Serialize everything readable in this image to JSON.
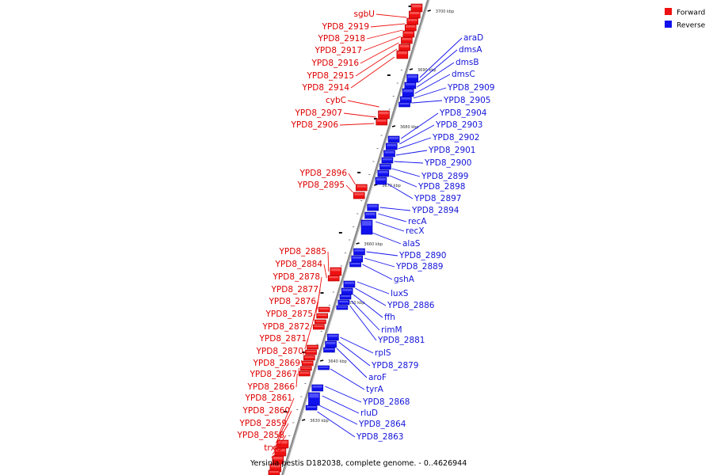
{
  "caption": "Yersinia pestis D182038, complete genome. - 0..4626944",
  "legend": [
    {
      "label": "Forward",
      "color": "#ee1111"
    },
    {
      "label": "Reverse",
      "color": "#1111ee"
    }
  ],
  "colors": {
    "forward": "#ee1111",
    "reverse": "#1111ee",
    "forward_text": "#dd0000",
    "reverse_text": "#1414d8",
    "backbone": "#888888"
  },
  "scale_ticks": [
    "3700 kbp",
    "3690 kbp",
    "3680 kbp",
    "3670 kbp",
    "3660 kbp",
    "3650 kbp",
    "3640 kbp",
    "3630 kbp"
  ],
  "forward_genes": [
    "sgbU",
    "YPD8_2919",
    "YPD8_2918",
    "YPD8_2917",
    "YPD8_2916",
    "YPD8_2915",
    "YPD8_2914",
    "cybC",
    "YPD8_2907",
    "YPD8_2906",
    "YPD8_2896",
    "YPD8_2895",
    "YPD8_2885",
    "YPD8_2884",
    "YPD8_2878",
    "YPD8_2877",
    "YPD8_2876",
    "YPD8_2875",
    "YPD8_2872",
    "YPD8_2871",
    "YPD8_2870",
    "YPD8_2869",
    "YPD8_2867",
    "YPD8_2866",
    "YPD8_2861",
    "YPD8_2860",
    "YPD8_2859",
    "YPD8_2858",
    "trxC"
  ],
  "reverse_genes": [
    "araD",
    "dmsA",
    "dmsB",
    "dmsC",
    "YPD8_2909",
    "YPD8_2905",
    "YPD8_2904",
    "YPD8_2903",
    "YPD8_2902",
    "YPD8_2901",
    "YPD8_2900",
    "YPD8_2899",
    "YPD8_2898",
    "YPD8_2897",
    "YPD8_2894",
    "recA",
    "recX",
    "alaS",
    "YPD8_2890",
    "YPD8_2889",
    "gshA",
    "luxS",
    "YPD8_2886",
    "ffh",
    "rimM",
    "YPD8_2881",
    "rplS",
    "YPD8_2879",
    "aroF",
    "tyrA",
    "YPD8_2868",
    "rluD",
    "YPD8_2864",
    "YPD8_2863"
  ]
}
